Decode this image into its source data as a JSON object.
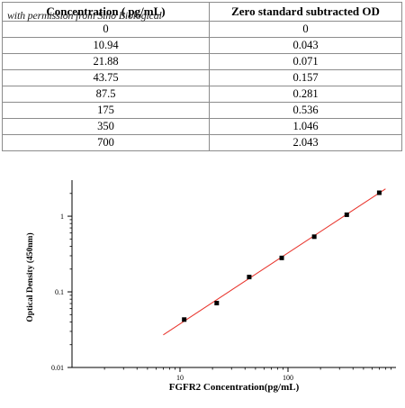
{
  "credit": "with permission from Sino Biological",
  "table": {
    "headers": [
      "Concentration ( pg/mL)",
      "Zero standard subtracted OD"
    ],
    "rows": [
      [
        "0",
        "0"
      ],
      [
        "10.94",
        "0.043"
      ],
      [
        "21.88",
        "0.071"
      ],
      [
        "43.75",
        "0.157"
      ],
      [
        "87.5",
        "0.281"
      ],
      [
        "175",
        "0.536"
      ],
      [
        "350",
        "1.046"
      ],
      [
        "700",
        "2.043"
      ]
    ]
  },
  "chart_data": {
    "type": "scatter",
    "xlabel": "FGFR2  Concentration(pg/mL)",
    "ylabel": "Optical Density (450nm)",
    "x_scale": "log",
    "y_scale": "log",
    "xlim": [
      1,
      1000
    ],
    "ylim": [
      0.01,
      3
    ],
    "x_ticks": [
      {
        "value": 10,
        "label": "10"
      },
      {
        "value": 100,
        "label": "100"
      }
    ],
    "y_ticks": [
      {
        "value": 0.01,
        "label": "0.01"
      },
      {
        "value": 0.1,
        "label": "0.1"
      },
      {
        "value": 1,
        "label": "1"
      }
    ],
    "series": [
      {
        "x": [
          10.94,
          21.88,
          43.75,
          87.5,
          175,
          350,
          700
        ],
        "y": [
          0.043,
          0.071,
          0.157,
          0.281,
          0.536,
          1.046,
          2.043
        ]
      }
    ],
    "fit_line": {
      "x": [
        7,
        800
      ],
      "y": [
        0.027,
        2.3
      ]
    },
    "colors": {
      "points": "#000000",
      "fit": "#e8322a"
    },
    "grid": false
  }
}
